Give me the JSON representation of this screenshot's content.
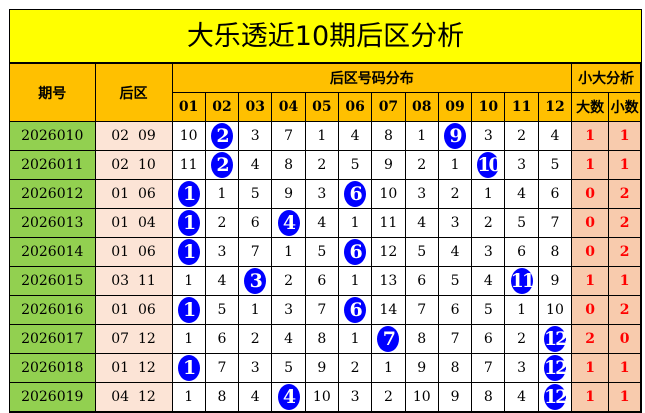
{
  "title": "大乐透近10期后区分析",
  "header": {
    "issue": "期号",
    "back": "后区",
    "dist": "后区号码分布",
    "stat": "小大分析",
    "big": "大数",
    "small": "小数",
    "cols": [
      "01",
      "02",
      "03",
      "04",
      "05",
      "06",
      "07",
      "08",
      "09",
      "10",
      "11",
      "12"
    ]
  },
  "colors": {
    "title_bg": "#ffff00",
    "header_bg": "#ffc000",
    "issue_bg": "#92d050",
    "ball": "#0000ff",
    "stat_text": "#ff0000"
  },
  "rows": [
    {
      "issue": "2026010",
      "back": "02  09",
      "cells": [
        "10",
        "2",
        "3",
        "7",
        "1",
        "4",
        "8",
        "1",
        "9",
        "3",
        "2",
        "4"
      ],
      "hits": [
        1,
        8
      ],
      "big": "1",
      "small": "1"
    },
    {
      "issue": "2026011",
      "back": "02  10",
      "cells": [
        "11",
        "2",
        "4",
        "8",
        "2",
        "5",
        "9",
        "2",
        "1",
        "10",
        "3",
        "5"
      ],
      "hits": [
        1,
        9
      ],
      "big": "1",
      "small": "1"
    },
    {
      "issue": "2026012",
      "back": "01  06",
      "cells": [
        "1",
        "1",
        "5",
        "9",
        "3",
        "6",
        "10",
        "3",
        "2",
        "1",
        "4",
        "6"
      ],
      "hits": [
        0,
        5
      ],
      "big": "0",
      "small": "2"
    },
    {
      "issue": "2026013",
      "back": "01  04",
      "cells": [
        "1",
        "2",
        "6",
        "4",
        "4",
        "1",
        "11",
        "4",
        "3",
        "2",
        "5",
        "7"
      ],
      "hits": [
        0,
        3
      ],
      "big": "0",
      "small": "2"
    },
    {
      "issue": "2026014",
      "back": "01  06",
      "cells": [
        "1",
        "3",
        "7",
        "1",
        "5",
        "6",
        "12",
        "5",
        "4",
        "3",
        "6",
        "8"
      ],
      "hits": [
        0,
        5
      ],
      "big": "0",
      "small": "2"
    },
    {
      "issue": "2026015",
      "back": "03  11",
      "cells": [
        "1",
        "4",
        "3",
        "2",
        "6",
        "1",
        "13",
        "6",
        "5",
        "4",
        "11",
        "9"
      ],
      "hits": [
        2,
        10
      ],
      "big": "1",
      "small": "1"
    },
    {
      "issue": "2026016",
      "back": "01  06",
      "cells": [
        "1",
        "5",
        "1",
        "3",
        "7",
        "6",
        "14",
        "7",
        "6",
        "5",
        "1",
        "10"
      ],
      "hits": [
        0,
        5
      ],
      "big": "0",
      "small": "2"
    },
    {
      "issue": "2026017",
      "back": "07  12",
      "cells": [
        "1",
        "6",
        "2",
        "4",
        "8",
        "1",
        "7",
        "8",
        "7",
        "6",
        "2",
        "12"
      ],
      "hits": [
        6,
        11
      ],
      "big": "2",
      "small": "0"
    },
    {
      "issue": "2026018",
      "back": "01  12",
      "cells": [
        "1",
        "7",
        "3",
        "5",
        "9",
        "2",
        "1",
        "9",
        "8",
        "7",
        "3",
        "12"
      ],
      "hits": [
        0,
        11
      ],
      "big": "1",
      "small": "1"
    },
    {
      "issue": "2026019",
      "back": "04  12",
      "cells": [
        "1",
        "8",
        "4",
        "4",
        "10",
        "3",
        "2",
        "10",
        "9",
        "8",
        "4",
        "12"
      ],
      "hits": [
        3,
        11
      ],
      "big": "1",
      "small": "1"
    }
  ]
}
